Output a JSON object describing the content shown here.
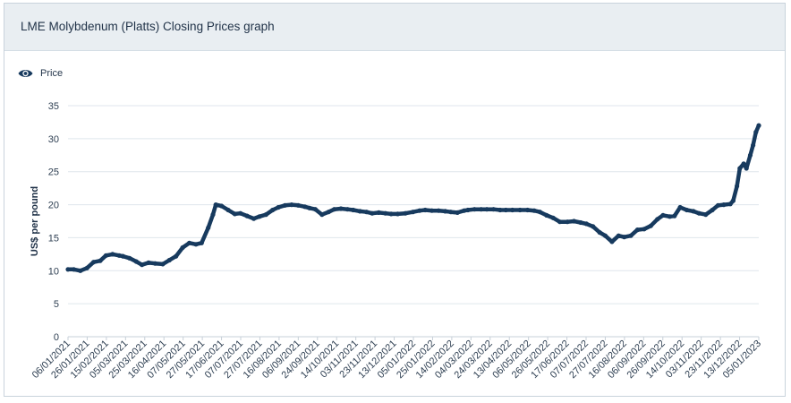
{
  "header": {
    "title": "LME Molybdenum (Platts) Closing Prices graph"
  },
  "legend": {
    "label": "Price",
    "icon": "eye-icon"
  },
  "colors": {
    "series": "#173a5e",
    "grid": "#dfe6ec",
    "header_bg": "#e9eef2"
  },
  "chart_data": {
    "type": "line",
    "ylabel": "US$ per pound",
    "ylim": [
      0,
      35
    ],
    "yticks": [
      0,
      5,
      10,
      15,
      20,
      25,
      30,
      35
    ],
    "xlim": [
      "2021-01-06",
      "2023-01-05"
    ],
    "xticks": [
      "06/01/2021",
      "26/01/2021",
      "15/02/2021",
      "05/03/2021",
      "25/03/2021",
      "16/04/2021",
      "07/05/2021",
      "27/05/2021",
      "17/06/2021",
      "07/07/2021",
      "27/07/2021",
      "16/08/2021",
      "06/09/2021",
      "24/09/2021",
      "14/10/2021",
      "03/11/2021",
      "23/11/2021",
      "13/12/2021",
      "05/01/2022",
      "25/01/2022",
      "14/02/2022",
      "04/03/2022",
      "24/03/2022",
      "13/04/2022",
      "06/05/2022",
      "26/05/2022",
      "17/06/2022",
      "07/07/2022",
      "27/07/2022",
      "16/08/2022",
      "06/09/2022",
      "26/09/2022",
      "14/10/2022",
      "03/11/2022",
      "23/11/2022",
      "13/12/2022",
      "05/01/2023"
    ],
    "grid": true,
    "legend_position": "top-left",
    "series": [
      {
        "name": "Price",
        "x": [
          "2021-01-06",
          "2021-01-12",
          "2021-01-19",
          "2021-01-26",
          "2021-02-02",
          "2021-02-09",
          "2021-02-15",
          "2021-02-22",
          "2021-03-01",
          "2021-03-05",
          "2021-03-12",
          "2021-03-19",
          "2021-03-25",
          "2021-04-01",
          "2021-04-08",
          "2021-04-16",
          "2021-04-23",
          "2021-04-30",
          "2021-05-07",
          "2021-05-14",
          "2021-05-21",
          "2021-05-27",
          "2021-06-03",
          "2021-06-08",
          "2021-06-11",
          "2021-06-17",
          "2021-06-24",
          "2021-07-01",
          "2021-07-07",
          "2021-07-14",
          "2021-07-21",
          "2021-07-27",
          "2021-08-03",
          "2021-08-10",
          "2021-08-16",
          "2021-08-23",
          "2021-08-30",
          "2021-09-06",
          "2021-09-13",
          "2021-09-18",
          "2021-09-24",
          "2021-10-01",
          "2021-10-08",
          "2021-10-14",
          "2021-10-21",
          "2021-10-28",
          "2021-11-03",
          "2021-11-10",
          "2021-11-17",
          "2021-11-23",
          "2021-11-30",
          "2021-12-07",
          "2021-12-13",
          "2021-12-20",
          "2021-12-28",
          "2022-01-05",
          "2022-01-12",
          "2022-01-18",
          "2022-01-25",
          "2022-02-01",
          "2022-02-08",
          "2022-02-14",
          "2022-02-21",
          "2022-02-28",
          "2022-03-04",
          "2022-03-11",
          "2022-03-18",
          "2022-03-24",
          "2022-03-31",
          "2022-04-07",
          "2022-04-13",
          "2022-04-20",
          "2022-04-28",
          "2022-05-06",
          "2022-05-13",
          "2022-05-19",
          "2022-05-26",
          "2022-06-02",
          "2022-06-09",
          "2022-06-17",
          "2022-06-24",
          "2022-07-01",
          "2022-07-07",
          "2022-07-14",
          "2022-07-21",
          "2022-07-27",
          "2022-08-03",
          "2022-08-10",
          "2022-08-16",
          "2022-08-23",
          "2022-08-30",
          "2022-09-06",
          "2022-09-13",
          "2022-09-20",
          "2022-09-26",
          "2022-10-03",
          "2022-10-08",
          "2022-10-14",
          "2022-10-21",
          "2022-10-28",
          "2022-11-03",
          "2022-11-10",
          "2022-11-17",
          "2022-11-23",
          "2022-11-29",
          "2022-12-06",
          "2022-12-09",
          "2022-12-13",
          "2022-12-16",
          "2022-12-20",
          "2022-12-23",
          "2022-12-27",
          "2022-12-30",
          "2023-01-02",
          "2023-01-05"
        ],
        "values": [
          10.2,
          10.2,
          10.0,
          10.4,
          11.3,
          11.5,
          12.3,
          12.5,
          12.3,
          12.2,
          11.9,
          11.4,
          10.9,
          11.2,
          11.1,
          11.0,
          11.6,
          12.2,
          13.5,
          14.2,
          14.0,
          14.2,
          16.5,
          18.5,
          20.0,
          19.8,
          19.2,
          18.6,
          18.7,
          18.3,
          17.9,
          18.2,
          18.5,
          19.2,
          19.6,
          19.9,
          20.0,
          19.9,
          19.7,
          19.5,
          19.3,
          18.5,
          18.9,
          19.3,
          19.4,
          19.3,
          19.2,
          19.0,
          18.9,
          18.7,
          18.8,
          18.7,
          18.6,
          18.6,
          18.7,
          18.9,
          19.1,
          19.2,
          19.1,
          19.1,
          19.0,
          18.9,
          18.8,
          19.1,
          19.2,
          19.3,
          19.3,
          19.3,
          19.3,
          19.2,
          19.2,
          19.2,
          19.2,
          19.2,
          19.1,
          18.9,
          18.4,
          18.0,
          17.4,
          17.4,
          17.5,
          17.3,
          17.1,
          16.7,
          15.8,
          15.3,
          14.4,
          15.3,
          15.1,
          15.3,
          16.2,
          16.3,
          16.8,
          17.8,
          18.4,
          18.2,
          18.3,
          19.6,
          19.2,
          19.0,
          18.7,
          18.5,
          19.2,
          19.9,
          20.0,
          20.1,
          20.6,
          22.8,
          25.5,
          26.2,
          25.5,
          27.5,
          29.0,
          31.0,
          32.0
        ]
      }
    ]
  }
}
